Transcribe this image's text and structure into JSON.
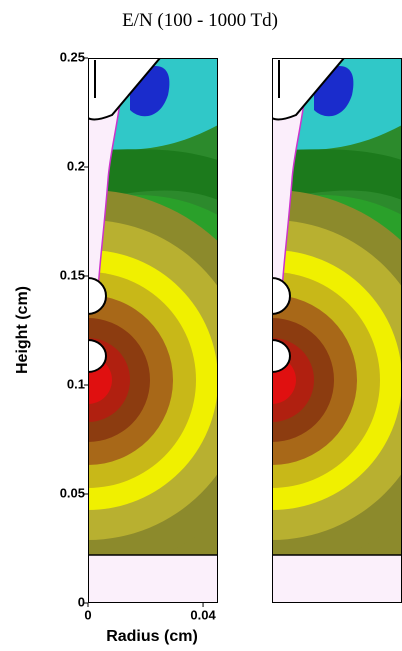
{
  "chart_data": {
    "type": "contour",
    "title": "E/N (100 - 1000 Td)",
    "x_label": "Radius (cm)",
    "y_label": "Height (cm)",
    "xlim": [
      0,
      0.0452
    ],
    "ylim": [
      0,
      0.25
    ],
    "xticks": [
      0,
      0.04
    ],
    "yticks": [
      0,
      0.05,
      0.1,
      0.15,
      0.2,
      0.25
    ]
  }
}
